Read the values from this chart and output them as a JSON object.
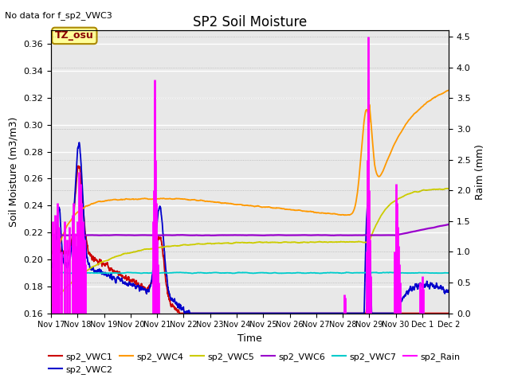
{
  "title": "SP2 Soil Moisture",
  "no_data_text": "No data for f_sp2_VWC3",
  "tz_label": "TZ_osu",
  "xlabel": "Time",
  "ylabel_left": "Soil Moisture (m3/m3)",
  "ylabel_right": "Raim (mm)",
  "ylim_left": [
    0.16,
    0.37
  ],
  "ylim_right": [
    0.0,
    4.6
  ],
  "bg_color": "#e8e8e8",
  "series_colors": {
    "sp2_VWC1": "#cc0000",
    "sp2_VWC2": "#0000cc",
    "sp2_VWC4": "#ff9900",
    "sp2_VWC5": "#cccc00",
    "sp2_VWC6": "#9900cc",
    "sp2_VWC7": "#00cccc",
    "sp2_Rain": "#ff00ff"
  },
  "x_tick_labels": [
    "Nov 17",
    "Nov 18",
    "Nov 19",
    "Nov 20",
    "Nov 21",
    "Nov 22",
    "Nov 23",
    "Nov 24",
    "Nov 25",
    "Nov 26",
    "Nov 27",
    "Nov 28",
    "Nov 29",
    "Nov 30",
    "Dec 1",
    "Dec 2"
  ],
  "x_ticks": [
    0,
    1,
    2,
    3,
    4,
    5,
    6,
    7,
    8,
    9,
    10,
    11,
    12,
    13,
    14,
    15
  ],
  "yticks_left": [
    0.16,
    0.18,
    0.2,
    0.22,
    0.24,
    0.26,
    0.28,
    0.3,
    0.32,
    0.34,
    0.36
  ],
  "yticks_right": [
    0.0,
    0.5,
    1.0,
    1.5,
    2.0,
    2.5,
    3.0,
    3.5,
    4.0,
    4.5
  ]
}
